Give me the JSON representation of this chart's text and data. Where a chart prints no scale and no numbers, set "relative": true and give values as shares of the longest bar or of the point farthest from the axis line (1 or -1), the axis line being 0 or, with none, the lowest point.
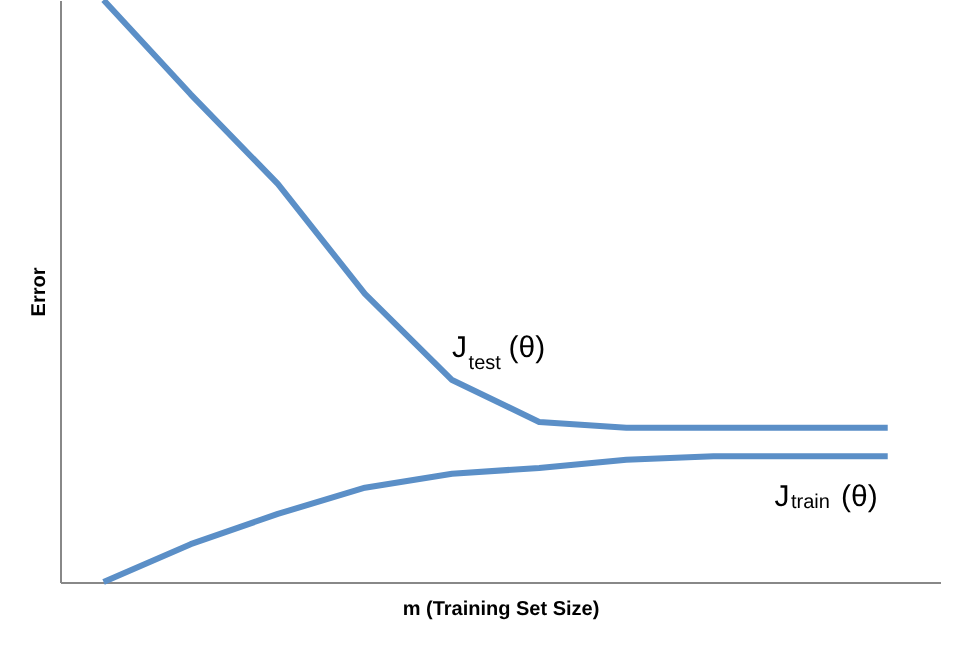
{
  "chart_data": {
    "type": "line",
    "relative": true,
    "xlabel": "m (Training Set Size)",
    "ylabel": "Error",
    "categories": [
      null,
      null,
      null,
      null,
      null,
      null,
      null,
      null,
      null,
      null
    ],
    "series": [
      {
        "name": "J$_{test}$(θ)",
        "color": "#5b8fc7",
        "values": [
          1.0,
          0.838,
          0.684,
          0.495,
          0.347,
          0.275,
          0.265,
          0.265,
          0.265,
          0.265
        ]
      },
      {
        "name": "J$_{train}$(θ)",
        "color": "#5b8fc7",
        "values": [
          0.0,
          0.065,
          0.117,
          0.162,
          0.186,
          0.196,
          0.21,
          0.216,
          0.216,
          0.216
        ]
      }
    ],
    "grid": false,
    "marker": "none",
    "line_style": "solid"
  }
}
